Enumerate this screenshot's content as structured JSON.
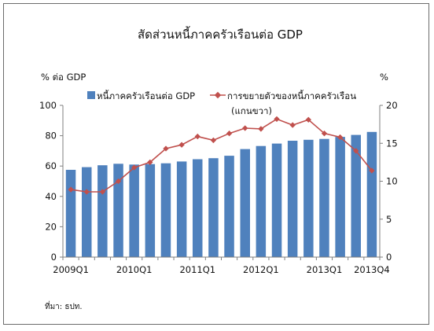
{
  "chart_data": {
    "type": "bar",
    "title": "สัดส่วนหนี้ภาคครัวเรือนต่อ GDP",
    "ylabel_left": "% ต่อ GDP",
    "ylabel_right": "%",
    "ylim_left": [
      0,
      100
    ],
    "ylim_right": [
      0,
      20
    ],
    "yticks_left": [
      "0",
      "20",
      "40",
      "60",
      "80",
      "100"
    ],
    "yticks_right": [
      "0",
      "5",
      "10",
      "15",
      "20"
    ],
    "x_tick_labels": [
      "2009Q1",
      "2010Q1",
      "2011Q1",
      "2012Q1",
      "2013Q1",
      "2013Q4"
    ],
    "categories": [
      "2009Q1",
      "2009Q2",
      "2009Q3",
      "2009Q4",
      "2010Q1",
      "2010Q2",
      "2010Q3",
      "2010Q4",
      "2011Q1",
      "2011Q2",
      "2011Q3",
      "2011Q4",
      "2012Q1",
      "2012Q2",
      "2012Q3",
      "2012Q4",
      "2013Q1",
      "2013Q2",
      "2013Q3",
      "2013Q4"
    ],
    "series": [
      {
        "name": "หนี้ภาคครัวเรือนต่อ GDP",
        "type": "bar",
        "axis": "left",
        "color": "#4f81bd",
        "values": [
          57.5,
          59.3,
          60.5,
          61.5,
          61.0,
          61.3,
          61.8,
          63.0,
          64.5,
          65.2,
          66.8,
          71.2,
          73.2,
          74.8,
          76.7,
          77.3,
          77.9,
          79.2,
          80.5,
          82.5
        ]
      },
      {
        "name": "การขยายตัวของหนี้ภาคครัวเรือน (แกนขวา)",
        "type": "line",
        "axis": "right",
        "color": "#c0504d",
        "values": [
          8.9,
          8.6,
          8.6,
          10.0,
          11.8,
          12.5,
          14.3,
          14.8,
          15.9,
          15.4,
          16.3,
          17.0,
          16.9,
          18.2,
          17.4,
          18.1,
          16.3,
          15.8,
          14.0,
          11.4
        ]
      }
    ],
    "legend_position": "top",
    "grid": false
  },
  "source_note": "ที่มา: ธปท."
}
